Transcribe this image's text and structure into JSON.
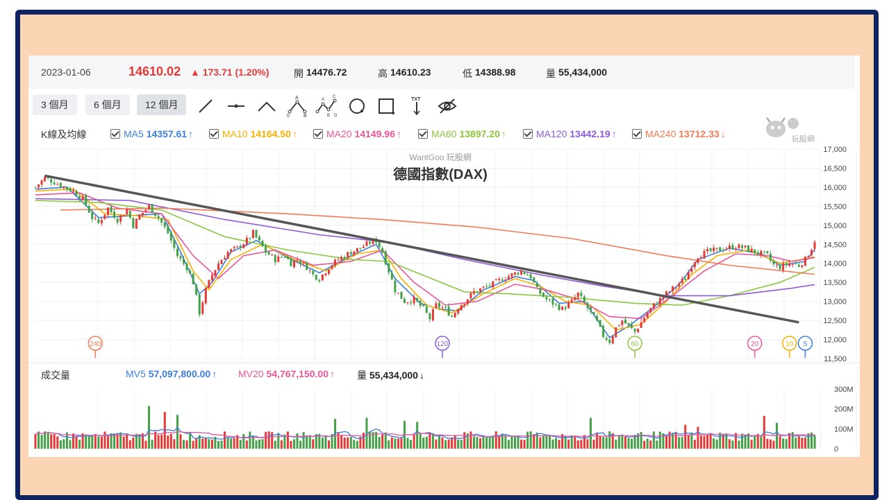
{
  "quote": {
    "date": "2023-01-06",
    "price": "14610.02",
    "change": "▲ 173.71 (1.20%)",
    "open_label": "開",
    "open": "14476.72",
    "high_label": "高",
    "high": "14610.23",
    "low_label": "低",
    "low": "14388.98",
    "volume_label": "量",
    "volume": "55,434,000"
  },
  "toolbar": {
    "range_buttons": [
      "3 個月",
      "6 個月",
      "12 個月"
    ],
    "active_range": "12 個月",
    "tools": [
      "line-tool-icon",
      "horizontal-line-tool-icon",
      "angle-tool-icon",
      "abc-pattern-tool-icon",
      "abcd-pattern-tool-icon",
      "circle-tool-icon",
      "rectangle-tool-icon",
      "text-tool-icon",
      "hide-drawings-icon"
    ],
    "abc_letters": [
      "A",
      "B",
      "C",
      "D"
    ],
    "txt_label": "TXT"
  },
  "indicators": {
    "section_label": "K線及均線",
    "ma": [
      {
        "name": "MA5",
        "value": "14357.61",
        "color": "#3b7ddd",
        "dir": "up"
      },
      {
        "name": "MA10",
        "value": "14164.50",
        "color": "#f5b000",
        "dir": "up"
      },
      {
        "name": "MA20",
        "value": "14149.96",
        "color": "#e8559b",
        "dir": "up"
      },
      {
        "name": "MA60",
        "value": "13897.20",
        "color": "#8cc63f",
        "dir": "up"
      },
      {
        "name": "MA120",
        "value": "13442.19",
        "color": "#8e5bd8",
        "dir": "up"
      },
      {
        "name": "MA240",
        "value": "13712.33",
        "color": "#f27a54",
        "dir": "down"
      }
    ]
  },
  "volume_panel": {
    "section_label": "成交量",
    "items": [
      {
        "name": "MV5",
        "value": "57,097,800.00",
        "color": "#3b7ddd",
        "dir": "up"
      },
      {
        "name": "MV20",
        "value": "54,767,150.00",
        "color": "#e8559b",
        "dir": "up"
      },
      {
        "name": "量",
        "value": "55,434,000",
        "color": "#222222",
        "dir": "down"
      }
    ]
  },
  "logo_text": "玩股網",
  "chart_data": {
    "type": "candlestick",
    "watermark": "WantGoo 玩股網",
    "title": "德國指數(DAX)",
    "ylim": [
      11500,
      17000
    ],
    "y_ticks": [
      "17,000",
      "16,500",
      "16,000",
      "15,500",
      "15,000",
      "14,500",
      "14,000",
      "13,500",
      "13,000",
      "12,500",
      "12,000",
      "11,500"
    ],
    "vol_ylim": [
      0,
      300
    ],
    "vol_ticks": [
      "300M",
      "200M",
      "100M",
      "0"
    ],
    "close_path": [
      [
        0,
        16000
      ],
      [
        3,
        16250
      ],
      [
        8,
        16050
      ],
      [
        12,
        15900
      ],
      [
        15,
        15700
      ],
      [
        18,
        15200
      ],
      [
        20,
        15050
      ],
      [
        23,
        15450
      ],
      [
        26,
        15150
      ],
      [
        29,
        15400
      ],
      [
        31,
        15000
      ],
      [
        33,
        15250
      ],
      [
        36,
        15500
      ],
      [
        39,
        15200
      ],
      [
        42,
        14800
      ],
      [
        45,
        14200
      ],
      [
        48,
        13900
      ],
      [
        50,
        13500
      ],
      [
        52,
        12700
      ],
      [
        54,
        13300
      ],
      [
        56,
        13700
      ],
      [
        58,
        14000
      ],
      [
        61,
        14300
      ],
      [
        64,
        14400
      ],
      [
        67,
        14600
      ],
      [
        69,
        14800
      ],
      [
        71,
        14550
      ],
      [
        73,
        14300
      ],
      [
        76,
        14100
      ],
      [
        79,
        14200
      ],
      [
        81,
        14000
      ],
      [
        83,
        14100
      ],
      [
        86,
        13900
      ],
      [
        88,
        13700
      ],
      [
        90,
        13600
      ],
      [
        93,
        13900
      ],
      [
        96,
        14100
      ],
      [
        100,
        14300
      ],
      [
        103,
        14400
      ],
      [
        106,
        14550
      ],
      [
        108,
        14600
      ],
      [
        110,
        14300
      ],
      [
        112,
        13800
      ],
      [
        114,
        13300
      ],
      [
        117,
        13000
      ],
      [
        120,
        13050
      ],
      [
        123,
        12800
      ],
      [
        125,
        12550
      ],
      [
        127,
        12900
      ],
      [
        130,
        12800
      ],
      [
        132,
        12600
      ],
      [
        134,
        12850
      ],
      [
        136,
        13000
      ],
      [
        139,
        13250
      ],
      [
        142,
        13350
      ],
      [
        145,
        13450
      ],
      [
        148,
        13600
      ],
      [
        151,
        13700
      ],
      [
        154,
        13800
      ],
      [
        157,
        13650
      ],
      [
        159,
        13300
      ],
      [
        162,
        13050
      ],
      [
        165,
        12900
      ],
      [
        167,
        12800
      ],
      [
        170,
        13000
      ],
      [
        172,
        13200
      ],
      [
        174,
        12950
      ],
      [
        176,
        12700
      ],
      [
        178,
        12450
      ],
      [
        180,
        12100
      ],
      [
        182,
        11950
      ],
      [
        184,
        12300
      ],
      [
        186,
        12500
      ],
      [
        188,
        12350
      ],
      [
        190,
        12200
      ],
      [
        192,
        12450
      ],
      [
        194,
        12700
      ],
      [
        196,
        12900
      ],
      [
        198,
        13050
      ],
      [
        200,
        13200
      ],
      [
        203,
        13400
      ],
      [
        206,
        13600
      ],
      [
        208,
        13950
      ],
      [
        210,
        14200
      ],
      [
        213,
        14300
      ],
      [
        216,
        14350
      ],
      [
        219,
        14400
      ],
      [
        222,
        14450
      ],
      [
        225,
        14400
      ],
      [
        228,
        14300
      ],
      [
        230,
        14250
      ],
      [
        232,
        14200
      ],
      [
        234,
        13950
      ],
      [
        236,
        13900
      ],
      [
        239,
        14000
      ],
      [
        242,
        13950
      ],
      [
        244,
        14100
      ],
      [
        246,
        14400
      ],
      [
        247,
        14610
      ]
    ],
    "ma_paths": {
      "MA5": [
        [
          0,
          15950
        ],
        [
          10,
          16000
        ],
        [
          20,
          15200
        ],
        [
          30,
          15250
        ],
        [
          40,
          15300
        ],
        [
          46,
          14300
        ],
        [
          52,
          13200
        ],
        [
          56,
          13500
        ],
        [
          62,
          14300
        ],
        [
          70,
          14600
        ],
        [
          80,
          14150
        ],
        [
          90,
          13750
        ],
        [
          100,
          14200
        ],
        [
          108,
          14500
        ],
        [
          114,
          13600
        ],
        [
          122,
          12950
        ],
        [
          128,
          12800
        ],
        [
          134,
          12750
        ],
        [
          142,
          13300
        ],
        [
          152,
          13650
        ],
        [
          158,
          13550
        ],
        [
          166,
          12950
        ],
        [
          174,
          13000
        ],
        [
          182,
          12050
        ],
        [
          188,
          12350
        ],
        [
          196,
          12850
        ],
        [
          204,
          13450
        ],
        [
          210,
          14100
        ],
        [
          220,
          14400
        ],
        [
          230,
          14250
        ],
        [
          236,
          13950
        ],
        [
          244,
          14050
        ],
        [
          247,
          14360
        ]
      ],
      "MA10": [
        [
          0,
          15900
        ],
        [
          12,
          15950
        ],
        [
          22,
          15300
        ],
        [
          32,
          15250
        ],
        [
          42,
          15150
        ],
        [
          50,
          13800
        ],
        [
          55,
          13300
        ],
        [
          62,
          14100
        ],
        [
          72,
          14500
        ],
        [
          82,
          14100
        ],
        [
          92,
          13800
        ],
        [
          102,
          14250
        ],
        [
          110,
          14350
        ],
        [
          116,
          13600
        ],
        [
          124,
          12900
        ],
        [
          132,
          12700
        ],
        [
          142,
          13200
        ],
        [
          152,
          13600
        ],
        [
          160,
          13400
        ],
        [
          168,
          13000
        ],
        [
          176,
          12900
        ],
        [
          184,
          12250
        ],
        [
          192,
          12400
        ],
        [
          200,
          13000
        ],
        [
          208,
          13700
        ],
        [
          216,
          14200
        ],
        [
          226,
          14350
        ],
        [
          236,
          14000
        ],
        [
          247,
          14165
        ]
      ],
      "MA20": [
        [
          0,
          15800
        ],
        [
          14,
          15850
        ],
        [
          26,
          15450
        ],
        [
          40,
          15300
        ],
        [
          50,
          14200
        ],
        [
          58,
          13600
        ],
        [
          66,
          14200
        ],
        [
          76,
          14350
        ],
        [
          88,
          13950
        ],
        [
          100,
          14050
        ],
        [
          110,
          14350
        ],
        [
          120,
          13500
        ],
        [
          130,
          12900
        ],
        [
          140,
          13000
        ],
        [
          152,
          13450
        ],
        [
          162,
          13300
        ],
        [
          172,
          13050
        ],
        [
          182,
          12600
        ],
        [
          192,
          12550
        ],
        [
          202,
          13150
        ],
        [
          212,
          13800
        ],
        [
          222,
          14250
        ],
        [
          232,
          14200
        ],
        [
          240,
          14050
        ],
        [
          247,
          14150
        ]
      ],
      "MA60": [
        [
          0,
          15650
        ],
        [
          20,
          15600
        ],
        [
          40,
          15400
        ],
        [
          60,
          14700
        ],
        [
          80,
          14350
        ],
        [
          100,
          14100
        ],
        [
          112,
          14050
        ],
        [
          124,
          13650
        ],
        [
          136,
          13250
        ],
        [
          150,
          13200
        ],
        [
          170,
          13100
        ],
        [
          190,
          12950
        ],
        [
          205,
          12900
        ],
        [
          220,
          13150
        ],
        [
          236,
          13500
        ],
        [
          247,
          13897
        ]
      ],
      "MA120": [
        [
          0,
          15700
        ],
        [
          30,
          15650
        ],
        [
          60,
          15150
        ],
        [
          90,
          14750
        ],
        [
          112,
          14550
        ],
        [
          136,
          14100
        ],
        [
          160,
          13700
        ],
        [
          180,
          13400
        ],
        [
          200,
          13150
        ],
        [
          220,
          13150
        ],
        [
          240,
          13350
        ],
        [
          247,
          13442
        ]
      ],
      "MA240": [
        [
          8,
          15400
        ],
        [
          40,
          15450
        ],
        [
          80,
          15300
        ],
        [
          110,
          15150
        ],
        [
          140,
          14950
        ],
        [
          170,
          14650
        ],
        [
          200,
          14200
        ],
        [
          220,
          13950
        ],
        [
          247,
          13712
        ]
      ]
    },
    "trendline": [
      [
        3,
        16300
      ],
      [
        242,
        12450
      ]
    ],
    "ma_markers": [
      {
        "label": "240",
        "index": 19,
        "color": "#f27a54"
      },
      {
        "label": "120",
        "index": 129,
        "color": "#8e5bd8"
      },
      {
        "label": "60",
        "index": 190,
        "color": "#8cc63f"
      },
      {
        "label": "20",
        "index": 228,
        "color": "#e8559b"
      },
      {
        "label": "10",
        "index": 239,
        "color": "#f5b000"
      },
      {
        "label": "5",
        "index": 244,
        "color": "#3b7ddd"
      }
    ],
    "volume_spikes": [
      [
        36,
        215
      ],
      [
        41,
        185
      ],
      [
        45,
        170
      ],
      [
        95,
        150
      ],
      [
        105,
        155
      ],
      [
        117,
        140
      ],
      [
        121,
        135
      ],
      [
        176,
        155
      ],
      [
        206,
        120
      ],
      [
        210,
        110
      ],
      [
        231,
        165
      ],
      [
        235,
        130
      ]
    ],
    "volume_base": 70
  }
}
